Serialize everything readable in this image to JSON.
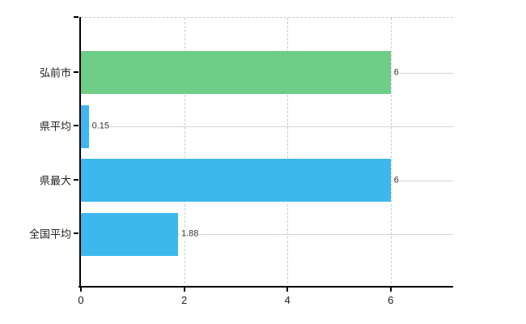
{
  "chart_data": {
    "type": "bar",
    "orientation": "horizontal",
    "categories": [
      "弘前市",
      "県平均",
      "県最大",
      "全国平均"
    ],
    "values": [
      6,
      0.15,
      6,
      1.88
    ],
    "value_labels": [
      "6",
      "0.15",
      "6",
      "1.88"
    ],
    "bar_colors": [
      "#6ecd86",
      "#3db8ef",
      "#3db8ef",
      "#3db8ef"
    ],
    "x_ticks": [
      0,
      2,
      4,
      6
    ],
    "x_tick_labels": [
      "0",
      "2",
      "4",
      "6"
    ],
    "xlim": [
      0,
      7.2
    ],
    "grid": true,
    "legend_position": "none",
    "title": ""
  },
  "colors": {
    "green_bar": "#6ecd86",
    "blue_bar": "#3db8ef",
    "axis": "#000000",
    "h_gridline": "#d6d6ce",
    "v_gridline": "#cccccc",
    "category_text": "#222222",
    "value_text": "#333333"
  }
}
